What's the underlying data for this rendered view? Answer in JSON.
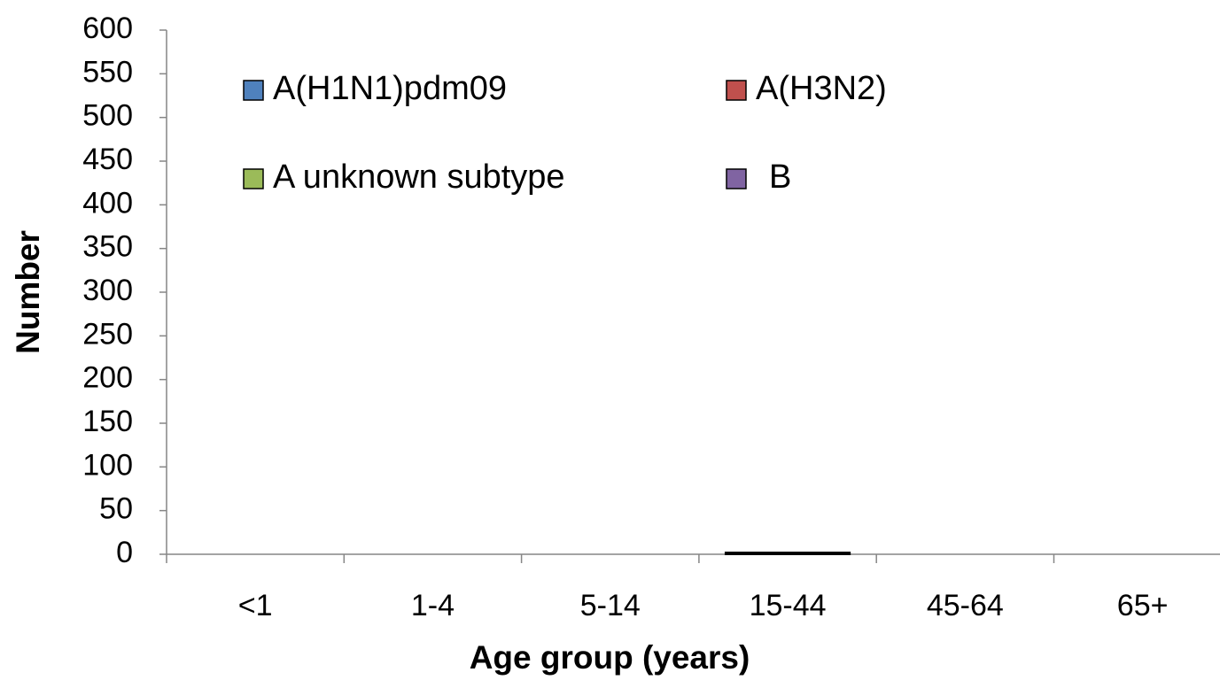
{
  "chart_data": {
    "type": "bar",
    "stacked": true,
    "x_label": "Age group (years)",
    "y_label": "Number",
    "categories": [
      "<1",
      "1-4",
      "5-14",
      "15-44",
      "45-64",
      "65+"
    ],
    "series": [
      {
        "name": "A(H1N1)pdm09",
        "color": "#4f81bd",
        "values": [
          0,
          0,
          0,
          2,
          0,
          0
        ]
      },
      {
        "name": "A(H3N2)",
        "color": "#c0504d",
        "values": [
          0,
          0,
          0,
          0,
          0,
          0
        ]
      },
      {
        "name": "A unknown subtype",
        "color": "#9bbb59",
        "values": [
          0,
          0,
          0,
          0,
          0,
          0
        ]
      },
      {
        "name": "B",
        "color": "#8064a2",
        "values": [
          0,
          0,
          0,
          0,
          0,
          0
        ]
      }
    ],
    "ylim": [
      0,
      600
    ],
    "yticks": [
      0,
      50,
      100,
      150,
      200,
      250,
      300,
      350,
      400,
      450,
      500,
      550,
      600
    ],
    "grid": false
  }
}
